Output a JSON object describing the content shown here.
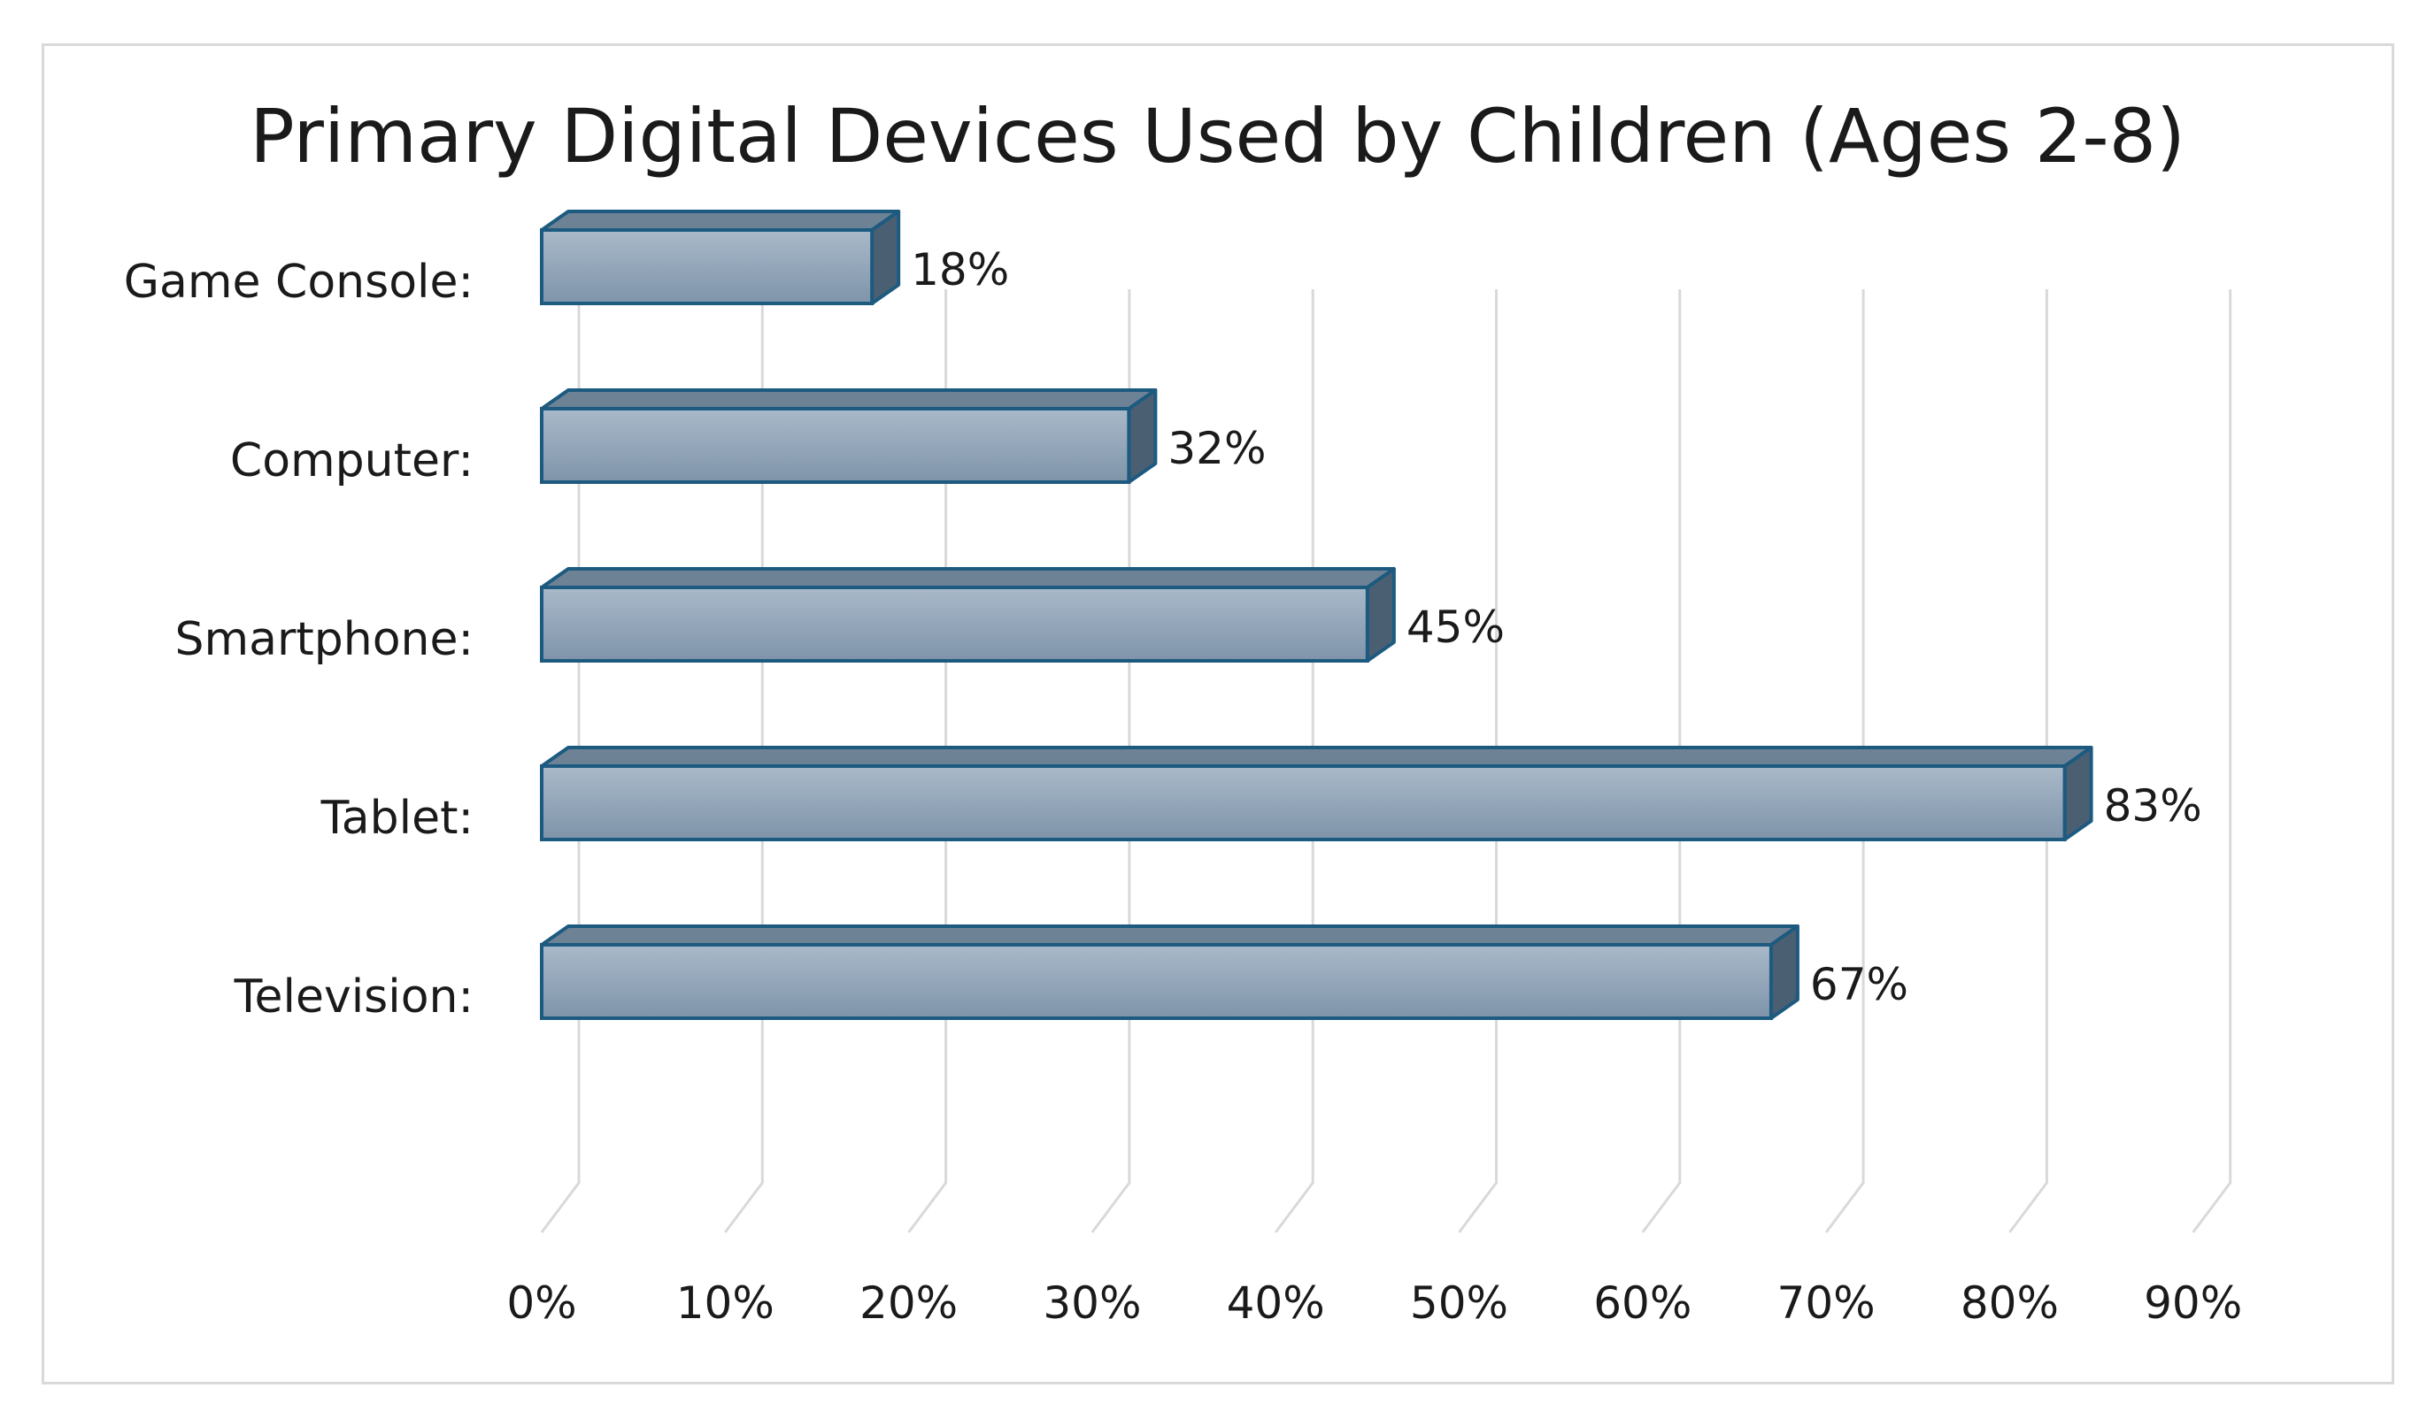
{
  "chart_data": {
    "type": "bar",
    "orientation": "horizontal",
    "style": "3d",
    "title": "Primary Digital Devices Used by Children (Ages 2-8)",
    "categories": [
      "Game Console:",
      "Computer:",
      "Smartphone:",
      "Tablet:",
      "Television:"
    ],
    "values": [
      18,
      32,
      45,
      83,
      67
    ],
    "data_labels": [
      "18%",
      "32%",
      "45%",
      "83%",
      "67%"
    ],
    "x_ticks": [
      0,
      10,
      20,
      30,
      40,
      50,
      60,
      70,
      80,
      90
    ],
    "x_tick_labels": [
      "0%",
      "10%",
      "20%",
      "30%",
      "40%",
      "50%",
      "60%",
      "70%",
      "80%",
      "90%"
    ],
    "xlim": [
      0,
      90
    ],
    "xlabel": "",
    "ylabel": "",
    "grid": true,
    "legend": "none"
  },
  "colors": {
    "bar_front_top": "#a9b9c9",
    "bar_front_bottom": "#7f94aa",
    "bar_top_face": "#6e8296",
    "bar_side_face": "#4b5f72",
    "bar_outline": "#1d5a80",
    "gridline": "#d9d9d9",
    "text": "#1a1a1a"
  }
}
